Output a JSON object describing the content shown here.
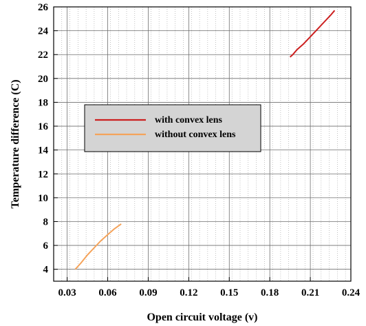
{
  "chart_data": {
    "type": "line",
    "xlabel": "Open circuit voltage (v)",
    "ylabel": "Temperature difference (C)",
    "xlim": [
      0.02,
      0.24
    ],
    "ylim": [
      3,
      26
    ],
    "xticks": [
      0.03,
      0.06,
      0.09,
      0.12,
      0.15,
      0.18,
      0.21,
      0.24
    ],
    "xtick_labels": [
      "0.03",
      "0.06",
      "0.09",
      "0.12",
      "0.15",
      "0.18",
      "0.21",
      "0.24"
    ],
    "yticks": [
      4,
      6,
      8,
      10,
      12,
      14,
      16,
      18,
      20,
      22,
      24,
      26
    ],
    "ytick_labels": [
      "4",
      "6",
      "8",
      "10",
      "12",
      "14",
      "16",
      "18",
      "20",
      "22",
      "24",
      "26"
    ],
    "grid": true,
    "legend_position": "center-left",
    "series": [
      {
        "name": "with convex lens",
        "color": "#cc1f1f",
        "points": [
          [
            0.195,
            21.8
          ],
          [
            0.197,
            22.0
          ],
          [
            0.2,
            22.4
          ],
          [
            0.205,
            22.9
          ],
          [
            0.21,
            23.5
          ],
          [
            0.215,
            24.1
          ],
          [
            0.22,
            24.7
          ],
          [
            0.225,
            25.3
          ],
          [
            0.228,
            25.7
          ]
        ]
      },
      {
        "name": "without convex lens",
        "color": "#f5a35a",
        "points": [
          [
            0.036,
            4.0
          ],
          [
            0.04,
            4.5
          ],
          [
            0.045,
            5.2
          ],
          [
            0.05,
            5.8
          ],
          [
            0.055,
            6.4
          ],
          [
            0.06,
            6.9
          ],
          [
            0.065,
            7.4
          ],
          [
            0.07,
            7.8
          ]
        ]
      }
    ]
  }
}
